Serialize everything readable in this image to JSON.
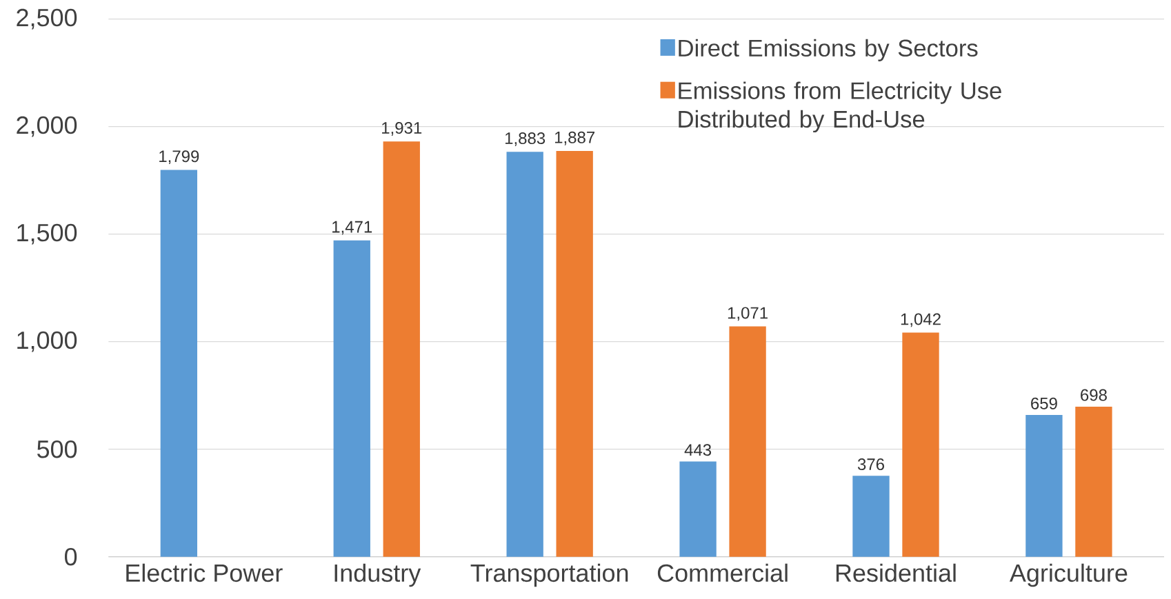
{
  "chart_data": {
    "type": "bar",
    "categories": [
      "Electric Power",
      "Industry",
      "Transportation",
      "Commercial",
      "Residential",
      "Agriculture"
    ],
    "series": [
      {
        "name": "Direct Emissions by Sectors",
        "color": "#5b9bd5",
        "values": [
          1799,
          1471,
          1883,
          443,
          376,
          659
        ],
        "value_labels": [
          "1,799",
          "1,471",
          "1,883",
          "443",
          "376",
          "659"
        ]
      },
      {
        "name": "Emissions from Electricity Use Distributed by End-Use",
        "color": "#ed7d31",
        "values": [
          null,
          1931,
          1887,
          1071,
          1042,
          698
        ],
        "value_labels": [
          null,
          "1,931",
          "1,887",
          "1,071",
          "1,042",
          "698"
        ]
      }
    ],
    "ylim": [
      0,
      2500
    ],
    "yticks": [
      {
        "value": 0,
        "label": "0"
      },
      {
        "value": 500,
        "label": "500"
      },
      {
        "value": 1000,
        "label": "1,000"
      },
      {
        "value": 1500,
        "label": "1,500"
      },
      {
        "value": 2000,
        "label": "2,000"
      },
      {
        "value": 2500,
        "label": "2,500"
      }
    ],
    "grid": "y",
    "legend": "top right"
  }
}
